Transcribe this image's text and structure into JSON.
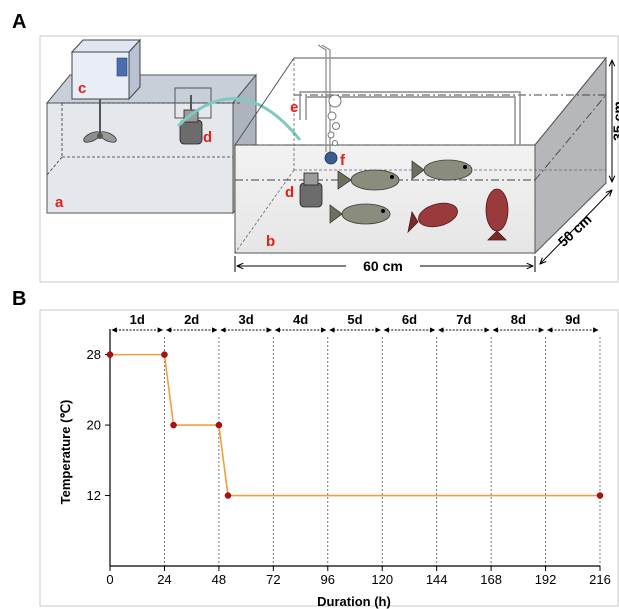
{
  "panel_a": {
    "panel_letter": "A",
    "labels": {
      "a": "a",
      "b": "b",
      "c": "c",
      "d": "d",
      "e": "e",
      "f": "f"
    },
    "dimensions": {
      "length": "60 cm",
      "width": "50 cm",
      "height": "35 cm"
    }
  },
  "panel_b": {
    "panel_letter": "B",
    "day_labels": [
      "1d",
      "2d",
      "3d",
      "4d",
      "5d",
      "6d",
      "7d",
      "8d",
      "9d"
    ]
  },
  "chart_data": {
    "type": "line",
    "xlabel": "Duration (h)",
    "ylabel": "Temperature (℃)",
    "x_ticks": [
      0,
      24,
      48,
      72,
      96,
      120,
      144,
      168,
      192,
      216
    ],
    "y_ticks": [
      12,
      20,
      28
    ],
    "xlim": [
      0,
      216
    ],
    "ylim": [
      4,
      30
    ],
    "grid": "dotted vertical lines at every 24 h",
    "series": [
      {
        "color": "#f0a040",
        "marker_color": "#b01010",
        "points": [
          {
            "x": 0,
            "y": 28
          },
          {
            "x": 24,
            "y": 28
          },
          {
            "x": 28,
            "y": 20
          },
          {
            "x": 48,
            "y": 20
          },
          {
            "x": 52,
            "y": 12
          },
          {
            "x": 216,
            "y": 12
          }
        ]
      }
    ]
  }
}
